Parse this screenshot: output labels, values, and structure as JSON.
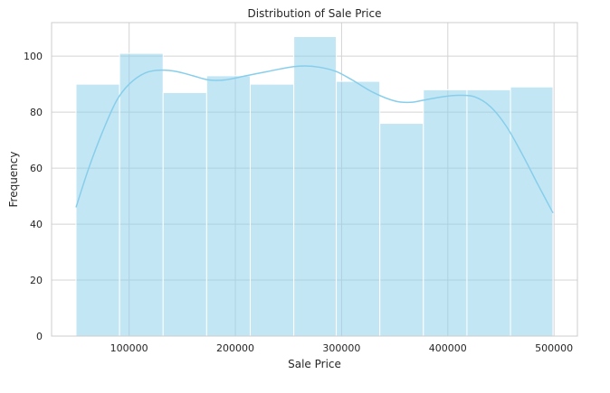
{
  "chart_data": {
    "type": "bar",
    "subtype": "histogram_with_kde",
    "title": "Distribution of Sale Price",
    "xlabel": "Sale Price",
    "ylabel": "Frequency",
    "xlim": [
      27000,
      522000
    ],
    "ylim": [
      0,
      112
    ],
    "x_ticks": [
      100000,
      200000,
      300000,
      400000,
      500000
    ],
    "x_tick_labels": [
      "100000",
      "200000",
      "300000",
      "400000",
      "500000"
    ],
    "y_ticks": [
      0,
      20,
      40,
      60,
      80,
      100
    ],
    "y_tick_labels": [
      "0",
      "20",
      "40",
      "60",
      "80",
      "100"
    ],
    "grid": true,
    "bins": [
      {
        "start": 50000,
        "end": 91000,
        "count": 90
      },
      {
        "start": 91000,
        "end": 132000,
        "count": 101
      },
      {
        "start": 132000,
        "end": 173000,
        "count": 87
      },
      {
        "start": 173000,
        "end": 214000,
        "count": 93
      },
      {
        "start": 214000,
        "end": 255000,
        "count": 90
      },
      {
        "start": 255000,
        "end": 295000,
        "count": 107
      },
      {
        "start": 295000,
        "end": 336000,
        "count": 91
      },
      {
        "start": 336000,
        "end": 377000,
        "count": 76
      },
      {
        "start": 377000,
        "end": 418000,
        "count": 88
      },
      {
        "start": 418000,
        "end": 459000,
        "count": 88
      },
      {
        "start": 459000,
        "end": 499000,
        "count": 89
      }
    ],
    "kde": {
      "x": [
        50000,
        62000,
        75000,
        88000,
        100000,
        115000,
        130000,
        145000,
        160000,
        175000,
        190000,
        210000,
        230000,
        250000,
        265000,
        280000,
        295000,
        310000,
        330000,
        350000,
        365000,
        380000,
        395000,
        410000,
        425000,
        440000,
        455000,
        470000,
        485000,
        499000
      ],
      "y": [
        46,
        60,
        73,
        84,
        90,
        94,
        95,
        94.5,
        93,
        91.5,
        91.5,
        93,
        94.5,
        96,
        96.5,
        96,
        94.5,
        91.5,
        87,
        84,
        83.5,
        84.5,
        85.5,
        86,
        85.5,
        82,
        75,
        65,
        54,
        44
      ]
    },
    "colors": {
      "bar_fill": "#87ceeb",
      "bar_fill_opacity": 0.5,
      "bar_edge": "#ffffff",
      "kde_line": "#87ceeb",
      "grid": "#d4d4d4",
      "axes_edge": "#cccccc",
      "text": "#262626"
    }
  }
}
